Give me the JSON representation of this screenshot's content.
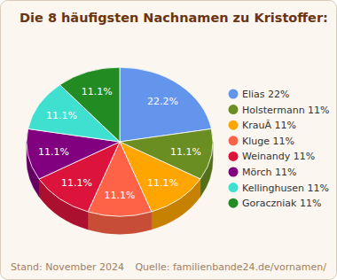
{
  "chart_data": {
    "type": "pie",
    "title": "Die 8 häufigsten Nachnamen zu Kristoffer:",
    "categories": [
      "Elias 22%",
      "Holstermann 11%",
      "KrauÃ 11%",
      "Kluge 11%",
      "Weinandy 11%",
      "Mörch 11%",
      "Kellinghusen 11%",
      "Goraczniak 11%"
    ],
    "values": [
      22.2,
      11.1,
      11.1,
      11.1,
      11.1,
      11.1,
      11.1,
      11.1
    ],
    "value_labels": [
      "22.2%",
      "11.1%",
      "11.1%",
      "11.1%",
      "11.1%",
      "11.1%",
      "11.1%",
      "11.1%"
    ],
    "colors": [
      "#6495ed",
      "#6b8e23",
      "#ffa500",
      "#ff6347",
      "#dc143c",
      "#800080",
      "#40e0d0",
      "#228b22"
    ],
    "data_labels": true,
    "legend": "right",
    "annotations": [
      "Stand: November 2024",
      "Quelle: familienbande24.de/vornamen/"
    ]
  }
}
